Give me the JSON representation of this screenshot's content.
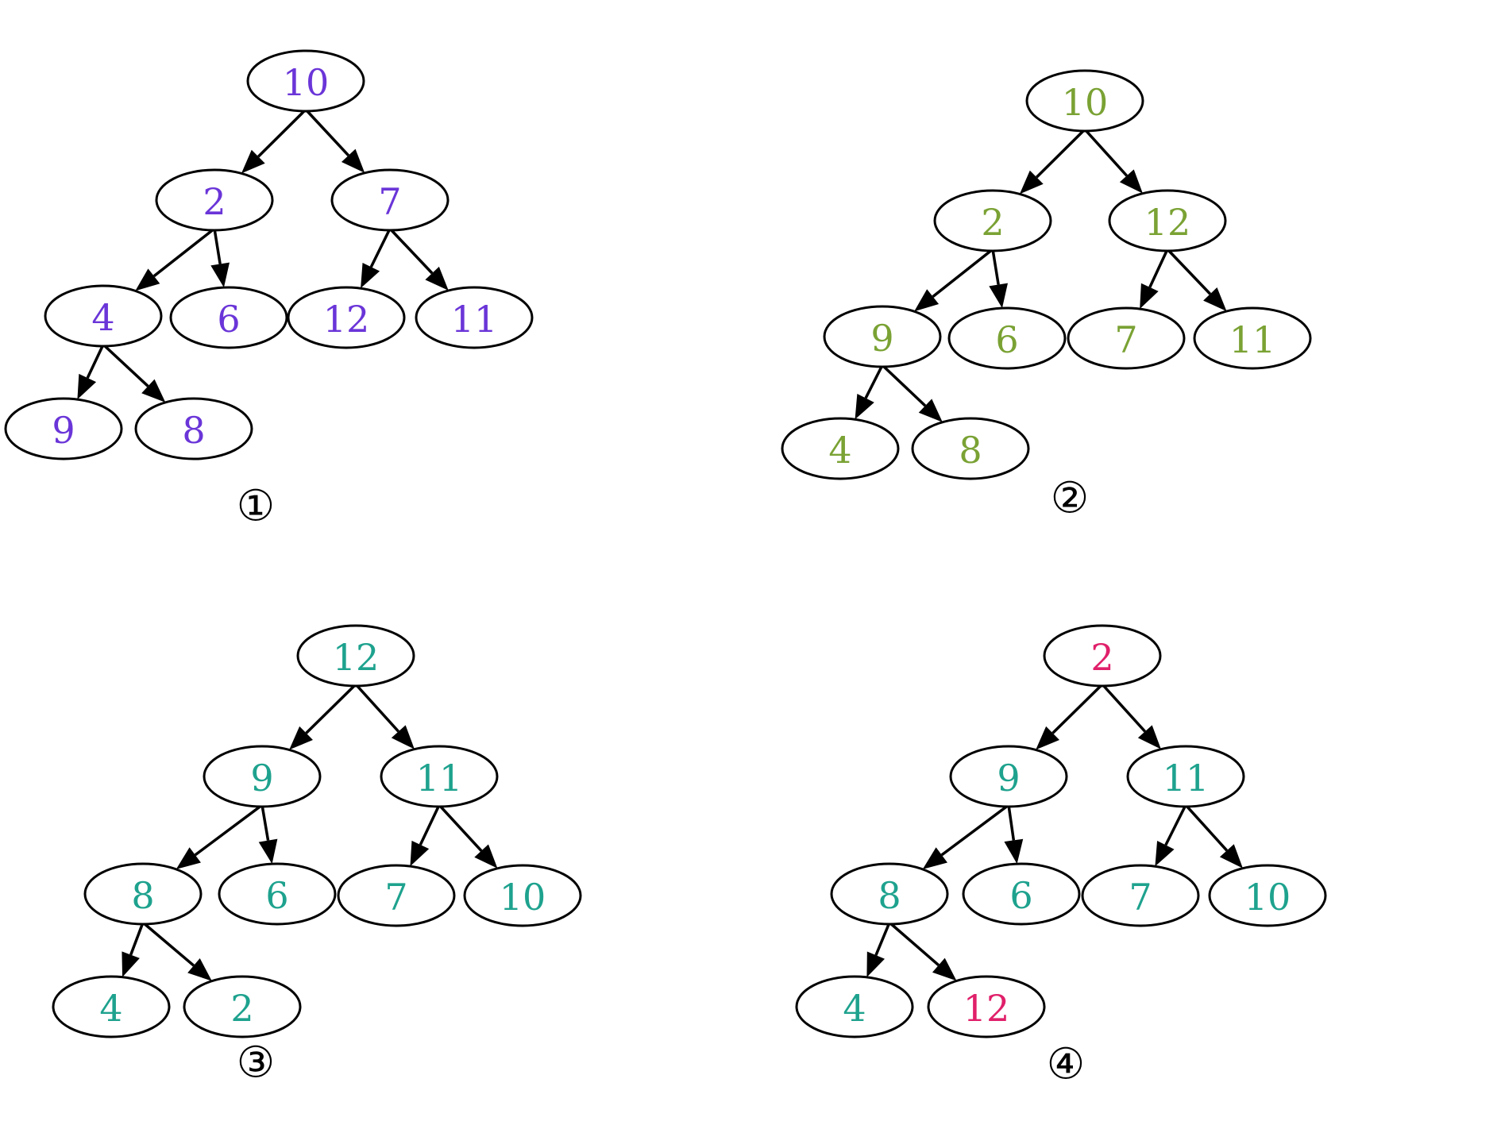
{
  "colors": {
    "tree1": "#6a35d8",
    "tree2": "#7aa234",
    "tree3": "#1ea28e",
    "highlight": "#e0206a",
    "stroke": "#000000"
  },
  "trees": [
    {
      "caption": "①",
      "nodes": [
        {
          "id": "n10",
          "label": "10",
          "tone": "tree1"
        },
        {
          "id": "n2",
          "label": "2",
          "tone": "tree1"
        },
        {
          "id": "n7",
          "label": "7",
          "tone": "tree1"
        },
        {
          "id": "n4",
          "label": "4",
          "tone": "tree1"
        },
        {
          "id": "n6",
          "label": "6",
          "tone": "tree1"
        },
        {
          "id": "n12",
          "label": "12",
          "tone": "tree1"
        },
        {
          "id": "n11",
          "label": "11",
          "tone": "tree1"
        },
        {
          "id": "n9",
          "label": "9",
          "tone": "tree1"
        },
        {
          "id": "n8",
          "label": "8",
          "tone": "tree1"
        }
      ],
      "edges": [
        [
          "n10",
          "n2"
        ],
        [
          "n10",
          "n7"
        ],
        [
          "n2",
          "n4"
        ],
        [
          "n2",
          "n6"
        ],
        [
          "n7",
          "n12"
        ],
        [
          "n7",
          "n11"
        ],
        [
          "n4",
          "n9"
        ],
        [
          "n4",
          "n8"
        ]
      ]
    },
    {
      "caption": "②",
      "nodes": [
        {
          "id": "n10",
          "label": "10",
          "tone": "tree2"
        },
        {
          "id": "n2",
          "label": "2",
          "tone": "tree2"
        },
        {
          "id": "n12",
          "label": "12",
          "tone": "tree2"
        },
        {
          "id": "n9",
          "label": "9",
          "tone": "tree2"
        },
        {
          "id": "n6",
          "label": "6",
          "tone": "tree2"
        },
        {
          "id": "n7",
          "label": "7",
          "tone": "tree2"
        },
        {
          "id": "n11",
          "label": "11",
          "tone": "tree2"
        },
        {
          "id": "n4",
          "label": "4",
          "tone": "tree2"
        },
        {
          "id": "n8",
          "label": "8",
          "tone": "tree2"
        }
      ],
      "edges": [
        [
          "n10",
          "n2"
        ],
        [
          "n10",
          "n12"
        ],
        [
          "n2",
          "n9"
        ],
        [
          "n2",
          "n6"
        ],
        [
          "n12",
          "n7"
        ],
        [
          "n12",
          "n11"
        ],
        [
          "n9",
          "n4"
        ],
        [
          "n9",
          "n8"
        ]
      ]
    },
    {
      "caption": "③",
      "nodes": [
        {
          "id": "n12",
          "label": "12",
          "tone": "tree3"
        },
        {
          "id": "n9",
          "label": "9",
          "tone": "tree3"
        },
        {
          "id": "n11",
          "label": "11",
          "tone": "tree3"
        },
        {
          "id": "n8",
          "label": "8",
          "tone": "tree3"
        },
        {
          "id": "n6",
          "label": "6",
          "tone": "tree3"
        },
        {
          "id": "n7",
          "label": "7",
          "tone": "tree3"
        },
        {
          "id": "n10",
          "label": "10",
          "tone": "tree3"
        },
        {
          "id": "n4",
          "label": "4",
          "tone": "tree3"
        },
        {
          "id": "n2",
          "label": "2",
          "tone": "tree3"
        }
      ],
      "edges": [
        [
          "n12",
          "n9"
        ],
        [
          "n12",
          "n11"
        ],
        [
          "n9",
          "n8"
        ],
        [
          "n9",
          "n6"
        ],
        [
          "n11",
          "n7"
        ],
        [
          "n11",
          "n10"
        ],
        [
          "n8",
          "n4"
        ],
        [
          "n8",
          "n2"
        ]
      ]
    },
    {
      "caption": "④",
      "nodes": [
        {
          "id": "n2",
          "label": "2",
          "tone": "highlight"
        },
        {
          "id": "n9",
          "label": "9",
          "tone": "tree3"
        },
        {
          "id": "n11",
          "label": "11",
          "tone": "tree3"
        },
        {
          "id": "n8",
          "label": "8",
          "tone": "tree3"
        },
        {
          "id": "n6",
          "label": "6",
          "tone": "tree3"
        },
        {
          "id": "n7",
          "label": "7",
          "tone": "tree3"
        },
        {
          "id": "n10",
          "label": "10",
          "tone": "tree3"
        },
        {
          "id": "n4",
          "label": "4",
          "tone": "tree3"
        },
        {
          "id": "n12",
          "label": "12",
          "tone": "highlight"
        }
      ],
      "edges": [
        [
          "n2",
          "n9"
        ],
        [
          "n2",
          "n11"
        ],
        [
          "n9",
          "n8"
        ],
        [
          "n9",
          "n6"
        ],
        [
          "n11",
          "n7"
        ],
        [
          "n11",
          "n10"
        ],
        [
          "n8",
          "n4"
        ],
        [
          "n8",
          "n12"
        ]
      ]
    }
  ]
}
